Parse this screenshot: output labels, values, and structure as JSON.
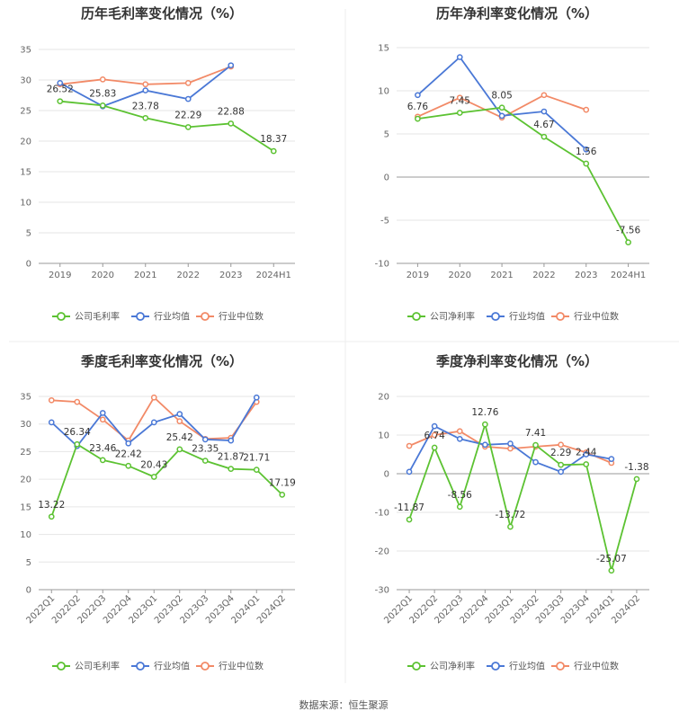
{
  "colors": {
    "company": "#5cc232",
    "industry_avg": "#4a78d6",
    "industry_median": "#f28a67",
    "grid": "#e6e6e6",
    "axis": "#999999"
  },
  "legend_labels": {
    "gross": [
      "公司毛利率",
      "行业均值",
      "行业中位数"
    ],
    "net": [
      "公司净利率",
      "行业均值",
      "行业中位数"
    ]
  },
  "source_text": "数据来源：恒生聚源",
  "chart_data": [
    {
      "id": "annual-gross",
      "type": "line",
      "title": "历年毛利率变化情况（%）",
      "categories": [
        "2019",
        "2020",
        "2021",
        "2022",
        "2023",
        "2024H1"
      ],
      "ylim": [
        0,
        35
      ],
      "yticks": [
        0,
        5,
        10,
        15,
        20,
        25,
        30,
        35
      ],
      "series": [
        {
          "name": "公司毛利率",
          "values": [
            26.52,
            25.83,
            23.78,
            22.29,
            22.88,
            18.37
          ],
          "labels": [
            "26.52",
            "25.83",
            "23.78",
            "22.29",
            "22.88",
            "18.37"
          ]
        },
        {
          "name": "行业均值",
          "values": [
            29.5,
            25.7,
            28.3,
            26.9,
            32.4,
            null
          ]
        },
        {
          "name": "行业中位数",
          "values": [
            29.3,
            30.1,
            29.3,
            29.5,
            32.2,
            null
          ]
        }
      ]
    },
    {
      "id": "annual-net",
      "type": "line",
      "title": "历年净利率变化情况（%）",
      "categories": [
        "2019",
        "2020",
        "2021",
        "2022",
        "2023",
        "2024H1"
      ],
      "ylim": [
        -10,
        15
      ],
      "yticks": [
        -10,
        -5,
        0,
        5,
        10,
        15
      ],
      "series": [
        {
          "name": "公司净利率",
          "values": [
            6.76,
            7.45,
            8.05,
            4.67,
            1.56,
            -7.56
          ],
          "labels": [
            "6.76",
            "7.45",
            "8.05",
            "4.67",
            "1.56",
            "-7.56"
          ]
        },
        {
          "name": "行业均值",
          "values": [
            9.5,
            13.9,
            7.1,
            7.6,
            3.2,
            null
          ]
        },
        {
          "name": "行业中位数",
          "values": [
            7.0,
            9.2,
            6.9,
            9.5,
            7.8,
            null
          ]
        }
      ]
    },
    {
      "id": "quarterly-gross",
      "type": "line",
      "title": "季度毛利率变化情况（%）",
      "categories": [
        "2022Q1",
        "2022Q2",
        "2022Q3",
        "2022Q4",
        "2023Q1",
        "2023Q2",
        "2023Q3",
        "2023Q4",
        "2024Q1",
        "2024Q2"
      ],
      "ylim": [
        0,
        35
      ],
      "yticks": [
        0,
        5,
        10,
        15,
        20,
        25,
        30,
        35
      ],
      "series": [
        {
          "name": "公司毛利率",
          "values": [
            13.22,
            26.34,
            23.46,
            22.42,
            20.43,
            25.42,
            23.35,
            21.87,
            21.71,
            17.19
          ],
          "labels": [
            "13.22",
            "26.34",
            "23.46",
            "22.42",
            "20.43",
            "25.42",
            "23.35",
            "21.87",
            "21.71",
            "17.19"
          ]
        },
        {
          "name": "行业均值",
          "values": [
            30.3,
            26.0,
            32.0,
            26.5,
            30.3,
            31.8,
            27.2,
            27.0,
            34.8,
            null
          ]
        },
        {
          "name": "行业中位数",
          "values": [
            34.3,
            34.0,
            30.8,
            27.0,
            34.8,
            30.5,
            27.3,
            27.5,
            34.0,
            null
          ]
        }
      ]
    },
    {
      "id": "quarterly-net",
      "type": "line",
      "title": "季度净利率变化情况（%）",
      "categories": [
        "2022Q1",
        "2022Q2",
        "2022Q3",
        "2022Q4",
        "2023Q1",
        "2023Q2",
        "2023Q3",
        "2023Q4",
        "2024Q1",
        "2024Q2"
      ],
      "ylim": [
        -30,
        20
      ],
      "yticks": [
        -30,
        -20,
        -10,
        0,
        10,
        20
      ],
      "series": [
        {
          "name": "公司净利率",
          "values": [
            -11.87,
            6.74,
            -8.56,
            12.76,
            -13.72,
            7.41,
            2.29,
            2.44,
            -25.07,
            -1.38
          ],
          "labels": [
            "-11.87",
            "6.74",
            "-8.56",
            "12.76",
            "-13.72",
            "7.41",
            "2.29",
            "2.44",
            "-25.07",
            "-1.38"
          ]
        },
        {
          "name": "行业均值",
          "values": [
            0.5,
            12.3,
            9.0,
            7.5,
            7.8,
            3.0,
            0.5,
            5.0,
            3.8,
            null
          ]
        },
        {
          "name": "行业中位数",
          "values": [
            7.2,
            10.0,
            11.0,
            7.0,
            6.5,
            7.0,
            7.5,
            5.5,
            2.8,
            null
          ]
        }
      ]
    }
  ]
}
